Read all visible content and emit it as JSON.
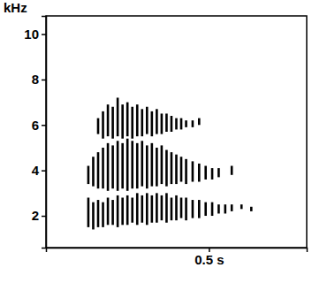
{
  "chart_data": {
    "type": "spectrogram",
    "y_label": "kHz",
    "color": "#000000",
    "x": [
      0.13,
      0.145,
      0.16,
      0.175,
      0.19,
      0.205,
      0.22,
      0.235,
      0.25,
      0.265,
      0.28,
      0.295,
      0.31,
      0.325,
      0.34,
      0.355,
      0.37,
      0.385,
      0.4,
      0.415,
      0.43,
      0.45,
      0.47,
      0.49,
      0.51,
      0.53,
      0.55,
      0.57,
      0.6,
      0.63
    ],
    "bands": [
      {
        "low": [
          1.5,
          1.4,
          1.5,
          1.5,
          1.6,
          1.6,
          1.5,
          1.6,
          1.6,
          1.7,
          1.6,
          1.7,
          1.6,
          1.7,
          1.7,
          1.8,
          1.7,
          1.8,
          1.8,
          1.9,
          1.8,
          1.9,
          1.9,
          2.0,
          2.0,
          2.1,
          2.1,
          2.2,
          2.3,
          2.2
        ],
        "high": [
          2.8,
          2.6,
          2.7,
          2.6,
          2.8,
          2.7,
          2.9,
          2.8,
          2.9,
          2.8,
          3.0,
          2.9,
          3.0,
          2.9,
          3.0,
          2.9,
          3.0,
          2.8,
          2.9,
          2.8,
          2.8,
          2.7,
          2.7,
          2.6,
          2.6,
          2.5,
          2.5,
          2.5,
          2.5,
          2.4
        ]
      },
      {
        "low": [
          3.4,
          3.3,
          3.2,
          3.2,
          3.1,
          3.2,
          3.1,
          3.2,
          3.1,
          3.2,
          3.2,
          3.3,
          3.2,
          3.3,
          3.3,
          3.4,
          3.3,
          3.4,
          3.4,
          3.5,
          3.4,
          3.5,
          3.5,
          3.6,
          3.6,
          3.7,
          null,
          3.8,
          null,
          null
        ],
        "high": [
          4.2,
          4.6,
          4.8,
          5.0,
          5.2,
          5.1,
          5.3,
          5.2,
          5.4,
          5.3,
          5.2,
          5.3,
          5.1,
          5.2,
          5.0,
          5.1,
          4.9,
          4.8,
          4.7,
          4.6,
          4.5,
          4.4,
          4.3,
          4.2,
          4.1,
          4.1,
          null,
          4.2,
          null,
          null
        ]
      },
      {
        "low": [
          null,
          null,
          5.6,
          5.4,
          5.5,
          5.4,
          5.5,
          5.4,
          5.5,
          5.4,
          5.5,
          5.5,
          5.6,
          5.5,
          5.6,
          5.6,
          5.7,
          5.7,
          5.8,
          5.8,
          5.9,
          5.9,
          6.0,
          null,
          null,
          null,
          null,
          null,
          null,
          null
        ],
        "high": [
          null,
          null,
          6.3,
          6.6,
          6.9,
          6.8,
          7.2,
          6.9,
          7.0,
          6.8,
          6.9,
          6.7,
          6.8,
          6.6,
          6.7,
          6.5,
          6.5,
          6.4,
          6.3,
          6.3,
          6.2,
          6.2,
          6.3,
          null,
          null,
          null,
          null,
          null,
          null,
          null
        ]
      }
    ],
    "xlim": [
      0,
      0.8
    ],
    "xticks": [
      {
        "value": 0.5,
        "label": "0.5 s"
      }
    ],
    "ylim": [
      0.6,
      10.8
    ],
    "yticks": [
      2,
      4,
      6,
      8,
      10
    ]
  }
}
